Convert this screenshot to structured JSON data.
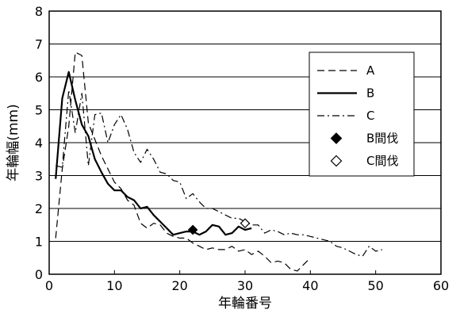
{
  "chart_data": {
    "type": "line",
    "xlabel": "年輪番号",
    "ylabel": "年輪幅(mm)",
    "xlim": [
      0,
      60
    ],
    "ylim": [
      0,
      8
    ],
    "xticks": [
      0,
      10,
      20,
      30,
      40,
      50,
      60
    ],
    "yticks": [
      0,
      1,
      2,
      3,
      4,
      5,
      6,
      7,
      8
    ],
    "grid": "horizontal",
    "legend_position": "right",
    "series": [
      {
        "name": "A",
        "style": "dashed",
        "x": [
          1,
          2,
          3,
          4,
          5,
          6,
          7,
          8,
          9,
          10,
          11,
          12,
          13,
          14,
          15,
          16,
          17,
          18,
          19,
          20,
          21,
          22,
          23,
          24,
          25,
          26,
          27,
          28,
          29,
          30,
          31,
          32,
          33,
          34,
          35,
          36,
          37,
          38,
          39,
          40
        ],
        "y": [
          1.1,
          3.2,
          4.5,
          6.75,
          6.65,
          4.6,
          4.1,
          3.6,
          3.2,
          2.8,
          2.6,
          2.25,
          2.1,
          1.55,
          1.4,
          1.55,
          1.5,
          1.25,
          1.15,
          1.1,
          1.1,
          0.95,
          0.85,
          0.75,
          0.8,
          0.75,
          0.75,
          0.85,
          0.7,
          0.75,
          0.6,
          0.7,
          0.55,
          0.35,
          0.4,
          0.35,
          0.15,
          0.1,
          0.3,
          0.5
        ]
      },
      {
        "name": "B",
        "style": "solid",
        "x": [
          1,
          2,
          3,
          4,
          5,
          6,
          7,
          8,
          9,
          10,
          11,
          12,
          13,
          14,
          15,
          16,
          17,
          18,
          19,
          20,
          21,
          22,
          23,
          24,
          25,
          26,
          27,
          28,
          29,
          30,
          31
        ],
        "y": [
          2.9,
          5.35,
          6.15,
          5.3,
          4.55,
          4.2,
          3.5,
          3.1,
          2.75,
          2.55,
          2.55,
          2.35,
          2.25,
          2.0,
          2.05,
          1.8,
          1.6,
          1.4,
          1.2,
          1.25,
          1.3,
          1.3,
          1.2,
          1.3,
          1.5,
          1.45,
          1.2,
          1.25,
          1.45,
          1.35,
          1.4
        ]
      },
      {
        "name": "C",
        "style": "dashdot",
        "x": [
          1,
          2,
          3,
          4,
          5,
          6,
          7,
          8,
          9,
          10,
          11,
          12,
          13,
          14,
          15,
          16,
          17,
          18,
          19,
          20,
          21,
          22,
          23,
          24,
          25,
          26,
          27,
          28,
          29,
          30,
          31,
          32,
          33,
          34,
          35,
          36,
          37,
          38,
          39,
          40,
          41,
          42,
          43,
          44,
          45,
          46,
          47,
          48,
          49,
          50,
          51
        ],
        "y": [
          3.3,
          3.25,
          5.6,
          4.3,
          5.5,
          3.3,
          4.85,
          4.9,
          4.0,
          4.55,
          4.85,
          4.4,
          3.7,
          3.4,
          3.8,
          3.5,
          3.1,
          3.05,
          2.85,
          2.8,
          2.3,
          2.45,
          2.2,
          2.0,
          2.0,
          1.9,
          1.8,
          1.7,
          1.7,
          1.6,
          1.5,
          1.5,
          1.25,
          1.35,
          1.3,
          1.2,
          1.25,
          1.2,
          1.2,
          1.15,
          1.1,
          1.05,
          1.0,
          0.85,
          0.8,
          0.7,
          0.6,
          0.55,
          0.85,
          0.7,
          0.75
        ]
      }
    ],
    "markers": [
      {
        "name": "B間伐",
        "style": "filled-diamond",
        "x": 22,
        "y": 1.35
      },
      {
        "name": "C間伐",
        "style": "open-diamond",
        "x": 30,
        "y": 1.55
      }
    ]
  }
}
